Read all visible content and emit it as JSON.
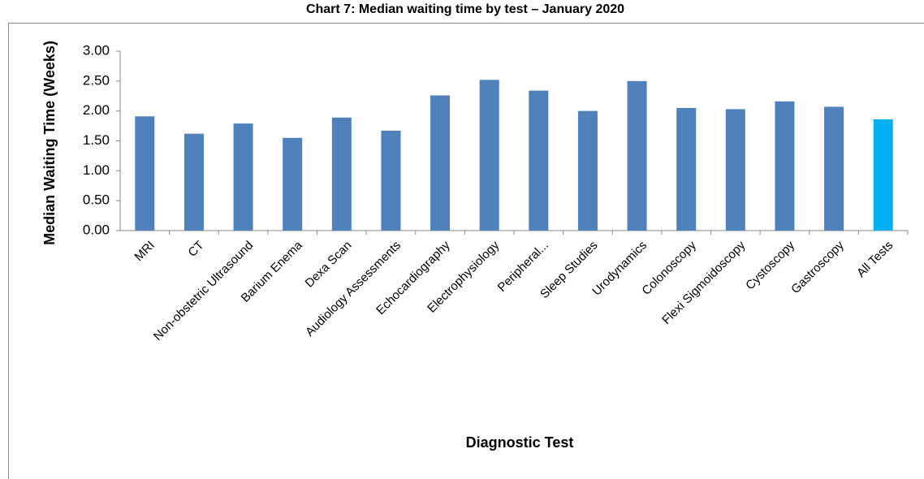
{
  "chart_data": {
    "type": "bar",
    "title": "Chart 7: Median waiting time by test – January 2020",
    "x_label": "Diagnostic Test",
    "y_label": "Median Waiting Time (Weeks)",
    "categories": [
      "MRI",
      "CT",
      "Non-obstetric Ultrasound",
      "Barium Enema",
      "Dexa Scan",
      "Audiology Assessments",
      "Echocardiography",
      "Electrophysiology",
      "Peripheral...",
      "Sleep Studies",
      "Urodynamics",
      "Colonoscopy",
      "Flexi Sigmoidoscopy",
      "Cystoscopy",
      "Gastroscopy",
      "All Tests"
    ],
    "values": [
      1.91,
      1.62,
      1.79,
      1.55,
      1.89,
      1.67,
      2.26,
      2.52,
      2.34,
      2.0,
      2.5,
      2.05,
      2.03,
      2.16,
      2.07,
      1.86
    ],
    "colors": [
      "#4f81bd",
      "#4f81bd",
      "#4f81bd",
      "#4f81bd",
      "#4f81bd",
      "#4f81bd",
      "#4f81bd",
      "#4f81bd",
      "#4f81bd",
      "#4f81bd",
      "#4f81bd",
      "#4f81bd",
      "#4f81bd",
      "#4f81bd",
      "#4f81bd",
      "#00b0f0"
    ],
    "ylim": [
      0,
      3
    ],
    "yticks": [
      {
        "value": 0,
        "label": "0.00"
      },
      {
        "value": 0.5,
        "label": "0.50"
      },
      {
        "value": 1,
        "label": "1.00"
      },
      {
        "value": 1.5,
        "label": "1.50"
      },
      {
        "value": 2,
        "label": "2.00"
      },
      {
        "value": 2.5,
        "label": "2.50"
      },
      {
        "value": 3,
        "label": "3.00"
      }
    ],
    "grid": false
  }
}
